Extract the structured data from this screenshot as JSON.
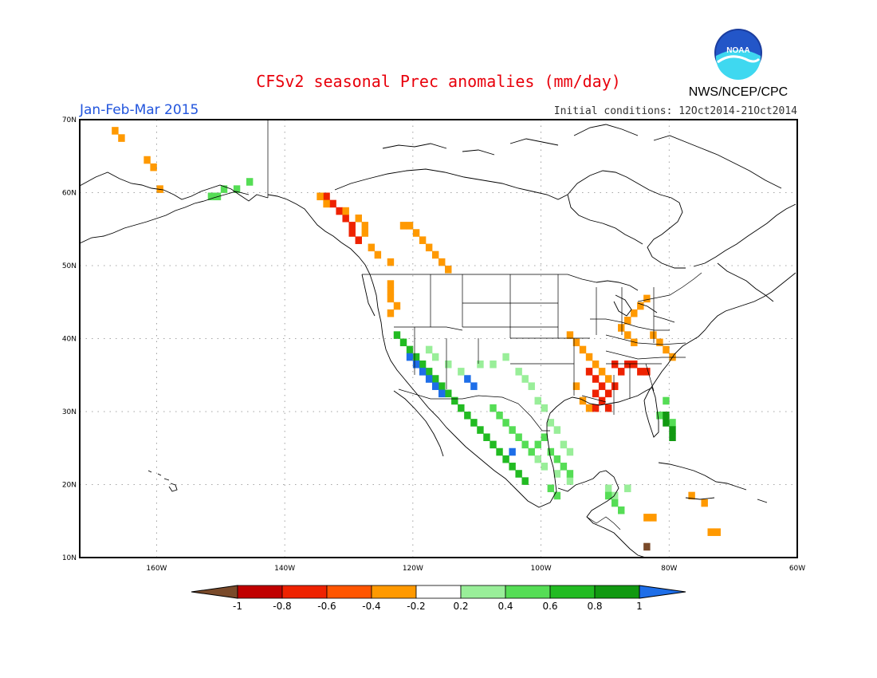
{
  "title": "CFSv2 seasonal Prec anomalies (mm/day)",
  "period": "Jan-Feb-Mar 2015",
  "initial_conditions": "Initial conditions: 12Oct2014-21Oct2014",
  "agency": "NWS/NCEP/CPC",
  "logo_text": "NOAA",
  "map": {
    "projection": "lat-lon",
    "lon_range": [
      -172,
      -60
    ],
    "lat_range": [
      10,
      70
    ],
    "lon_ticks": [
      "160W",
      "140W",
      "120W",
      "100W",
      "80W",
      "60W"
    ],
    "lat_ticks": [
      "10N",
      "20N",
      "30N",
      "40N",
      "50N",
      "60N",
      "70N"
    ]
  },
  "colorbar": {
    "labels": [
      "-1",
      "-0.8",
      "-0.6",
      "-0.4",
      "-0.2",
      "0.2",
      "0.4",
      "0.6",
      "0.8",
      "1"
    ],
    "colors": [
      "#7a4a2a",
      "#c00000",
      "#ee2200",
      "#ff5500",
      "#ff9900",
      "#ffffff",
      "#99ee99",
      "#55dd55",
      "#22bb22",
      "#119911",
      "#1e6ee8"
    ]
  },
  "anomaly_regions": [
    {
      "name": "Alaska coast",
      "color": "#ff9900",
      "cells": [
        [
          -167,
          68
        ],
        [
          -166,
          67
        ],
        [
          -162,
          64
        ],
        [
          -161,
          63
        ],
        [
          -160,
          60
        ]
      ]
    },
    {
      "name": "Alaska south",
      "color": "#55dd55",
      "cells": [
        [
          -152,
          59
        ],
        [
          -151,
          59
        ],
        [
          -150,
          60
        ],
        [
          -148,
          60
        ],
        [
          -146,
          61
        ]
      ]
    },
    {
      "name": "BC coast dry",
      "color": "#ee2200",
      "cells": [
        [
          -134,
          59
        ],
        [
          -133,
          58
        ],
        [
          -132,
          57
        ],
        [
          -131,
          56
        ],
        [
          -130,
          55
        ],
        [
          -130,
          54
        ],
        [
          -129,
          53
        ]
      ]
    },
    {
      "name": "BC coast dry edge",
      "color": "#ff9900",
      "cells": [
        [
          -135,
          59
        ],
        [
          -134,
          58
        ],
        [
          -131,
          57
        ],
        [
          -129,
          56
        ],
        [
          -128,
          55
        ],
        [
          -128,
          54
        ],
        [
          -127,
          52
        ],
        [
          -126,
          51
        ],
        [
          -124,
          50
        ]
      ]
    },
    {
      "name": "Rockies Canada",
      "color": "#ff9900",
      "cells": [
        [
          -122,
          55
        ],
        [
          -121,
          55
        ],
        [
          -120,
          54
        ],
        [
          -119,
          53
        ],
        [
          -118,
          52
        ],
        [
          -117,
          51
        ],
        [
          -116,
          50
        ],
        [
          -115,
          49
        ]
      ]
    },
    {
      "name": "Pacific NW",
      "color": "#ff9900",
      "cells": [
        [
          -124,
          47
        ],
        [
          -124,
          46
        ],
        [
          -124,
          45
        ],
        [
          -123,
          44
        ],
        [
          -124,
          43
        ]
      ]
    },
    {
      "name": "California wet",
      "color": "#22bb22",
      "cells": [
        [
          -123,
          40
        ],
        [
          -122,
          39
        ],
        [
          -121,
          38
        ],
        [
          -120,
          37
        ],
        [
          -119,
          36
        ],
        [
          -118,
          35
        ],
        [
          -117,
          34
        ],
        [
          -116,
          33
        ],
        [
          -115,
          32
        ],
        [
          -114,
          31
        ],
        [
          -113,
          30
        ],
        [
          -112,
          29
        ],
        [
          -111,
          28
        ],
        [
          -110,
          27
        ],
        [
          -109,
          26
        ],
        [
          -108,
          25
        ],
        [
          -107,
          24
        ],
        [
          -106,
          23
        ],
        [
          -105,
          22
        ],
        [
          -104,
          21
        ],
        [
          -103,
          20
        ]
      ]
    },
    {
      "name": "California very wet",
      "color": "#1e6ee8",
      "cells": [
        [
          -121,
          37
        ],
        [
          -120,
          36
        ],
        [
          -119,
          35
        ],
        [
          -118,
          34
        ],
        [
          -117,
          33
        ],
        [
          -116,
          32
        ],
        [
          -112,
          34
        ],
        [
          -111,
          33
        ],
        [
          -105,
          24
        ]
      ]
    },
    {
      "name": "Southwest wet",
      "color": "#99ee99",
      "cells": [
        [
          -118,
          38
        ],
        [
          -117,
          37
        ],
        [
          -115,
          36
        ],
        [
          -113,
          35
        ],
        [
          -110,
          36
        ],
        [
          -108,
          36
        ],
        [
          -106,
          37
        ],
        [
          -104,
          35
        ],
        [
          -103,
          34
        ],
        [
          -102,
          33
        ],
        [
          -101,
          31
        ],
        [
          -100,
          30
        ],
        [
          -99,
          28
        ],
        [
          -98,
          27
        ],
        [
          -97,
          25
        ],
        [
          -96,
          24
        ],
        [
          -101,
          23
        ],
        [
          -100,
          22
        ],
        [
          -98,
          21
        ],
        [
          -96,
          20
        ],
        [
          -90,
          19
        ],
        [
          -89,
          18
        ],
        [
          -87,
          19
        ]
      ]
    },
    {
      "name": "Mexico moderate",
      "color": "#55dd55",
      "cells": [
        [
          -108,
          30
        ],
        [
          -107,
          29
        ],
        [
          -106,
          28
        ],
        [
          -105,
          27
        ],
        [
          -104,
          26
        ],
        [
          -103,
          25
        ],
        [
          -102,
          24
        ],
        [
          -101,
          25
        ],
        [
          -100,
          26
        ],
        [
          -99,
          24
        ],
        [
          -98,
          23
        ],
        [
          -97,
          22
        ],
        [
          -96,
          21
        ],
        [
          -99,
          19
        ],
        [
          -98,
          18
        ],
        [
          -90,
          18
        ],
        [
          -89,
          17
        ],
        [
          -88,
          16
        ],
        [
          -81,
          31
        ],
        [
          -82,
          29
        ],
        [
          -80,
          28
        ]
      ]
    },
    {
      "name": "Florida wet",
      "color": "#119911",
      "cells": [
        [
          -81,
          29
        ],
        [
          -81,
          28
        ],
        [
          -80,
          27
        ],
        [
          -80,
          26
        ]
      ]
    },
    {
      "name": "Ohio Valley dry",
      "color": "#ff9900",
      "cells": [
        [
          -96,
          40
        ],
        [
          -95,
          39
        ],
        [
          -94,
          38
        ],
        [
          -93,
          37
        ],
        [
          -92,
          36
        ],
        [
          -91,
          35
        ],
        [
          -90,
          34
        ],
        [
          -89,
          33
        ],
        [
          -95,
          33
        ],
        [
          -94,
          31
        ],
        [
          -93,
          30
        ],
        [
          -88,
          41
        ],
        [
          -87,
          42
        ],
        [
          -86,
          43
        ],
        [
          -85,
          44
        ],
        [
          -84,
          45
        ],
        [
          -83,
          40
        ],
        [
          -82,
          39
        ],
        [
          -81,
          38
        ],
        [
          -80,
          37
        ],
        [
          -87,
          40
        ],
        [
          -86,
          39
        ],
        [
          -77,
          18
        ],
        [
          -75,
          17
        ],
        [
          -74,
          13
        ],
        [
          -73,
          13
        ],
        [
          -84,
          15
        ],
        [
          -83,
          15
        ]
      ]
    },
    {
      "name": "Mississippi dry",
      "color": "#ee2200",
      "cells": [
        [
          -93,
          35
        ],
        [
          -92,
          34
        ],
        [
          -91,
          33
        ],
        [
          -90,
          32
        ],
        [
          -92,
          32
        ],
        [
          -91,
          31
        ],
        [
          -90,
          30
        ],
        [
          -89,
          36
        ],
        [
          -88,
          35
        ],
        [
          -87,
          36
        ],
        [
          -86,
          36
        ],
        [
          -85,
          35
        ],
        [
          -84,
          35
        ],
        [
          -89,
          33
        ],
        [
          -92,
          30
        ]
      ]
    },
    {
      "name": "Brown point",
      "color": "#7a4a2a",
      "cells": [
        [
          -84,
          11
        ]
      ]
    }
  ]
}
